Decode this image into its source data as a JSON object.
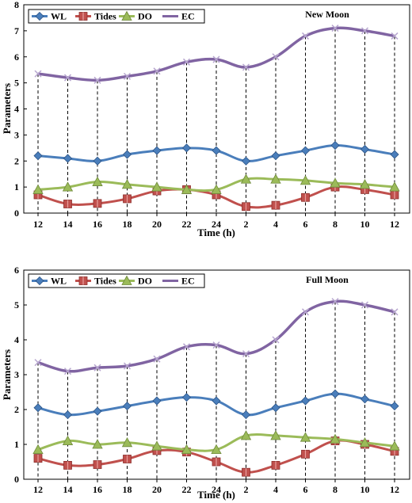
{
  "chart_data": [
    {
      "type": "line",
      "title": "New Moon",
      "xlabel": "Time (h)",
      "ylabel": "Parameters",
      "categories": [
        "12",
        "14",
        "16",
        "18",
        "20",
        "22",
        "24",
        "2",
        "4",
        "6",
        "8",
        "10",
        "12"
      ],
      "ylim": [
        0,
        8
      ],
      "yticks": [
        0,
        1,
        2,
        3,
        4,
        5,
        6,
        7,
        8
      ],
      "legend_position": "top-left",
      "series": [
        {
          "name": "WL",
          "color": "#4a7ebb",
          "marker": "diamond",
          "values": [
            2.2,
            2.1,
            2.0,
            2.25,
            2.4,
            2.5,
            2.4,
            2.0,
            2.2,
            2.4,
            2.6,
            2.45,
            2.25
          ]
        },
        {
          "name": "Tides",
          "color": "#c0504d",
          "marker": "square",
          "values": [
            0.7,
            0.35,
            0.37,
            0.55,
            0.85,
            0.9,
            0.7,
            0.25,
            0.3,
            0.6,
            1.0,
            0.9,
            0.7
          ]
        },
        {
          "name": "DO",
          "color": "#9bbb59",
          "marker": "triangle",
          "values": [
            0.9,
            1.0,
            1.2,
            1.1,
            1.0,
            0.9,
            0.9,
            1.3,
            1.3,
            1.25,
            1.15,
            1.1,
            1.0
          ]
        },
        {
          "name": "EC",
          "color": "#8064a2",
          "marker": "x",
          "values": [
            5.35,
            5.2,
            5.1,
            5.25,
            5.45,
            5.8,
            5.9,
            5.6,
            6.0,
            6.8,
            7.1,
            7.0,
            6.8
          ]
        }
      ]
    },
    {
      "type": "line",
      "title": "Full Moon",
      "xlabel": "Time (h)",
      "ylabel": "Parameters",
      "categories": [
        "12",
        "14",
        "16",
        "18",
        "20",
        "22",
        "24",
        "2",
        "4",
        "6",
        "8",
        "10",
        "12"
      ],
      "ylim": [
        0,
        6
      ],
      "yticks": [
        0,
        1,
        2,
        3,
        4,
        5,
        6
      ],
      "legend_position": "top-left",
      "series": [
        {
          "name": "WL",
          "color": "#4a7ebb",
          "marker": "diamond",
          "values": [
            2.05,
            1.85,
            1.95,
            2.1,
            2.25,
            2.35,
            2.25,
            1.85,
            2.05,
            2.25,
            2.45,
            2.3,
            2.1
          ]
        },
        {
          "name": "Tides",
          "color": "#c0504d",
          "marker": "square",
          "values": [
            0.6,
            0.4,
            0.42,
            0.58,
            0.82,
            0.78,
            0.5,
            0.2,
            0.4,
            0.72,
            1.1,
            1.0,
            0.8
          ]
        },
        {
          "name": "DO",
          "color": "#9bbb59",
          "marker": "triangle",
          "values": [
            0.85,
            1.1,
            1.0,
            1.05,
            0.95,
            0.85,
            0.85,
            1.25,
            1.25,
            1.2,
            1.15,
            1.05,
            0.95
          ]
        },
        {
          "name": "EC",
          "color": "#8064a2",
          "marker": "x",
          "values": [
            3.35,
            3.1,
            3.2,
            3.25,
            3.45,
            3.8,
            3.85,
            3.6,
            4.0,
            4.8,
            5.1,
            5.0,
            4.8
          ]
        }
      ]
    }
  ]
}
